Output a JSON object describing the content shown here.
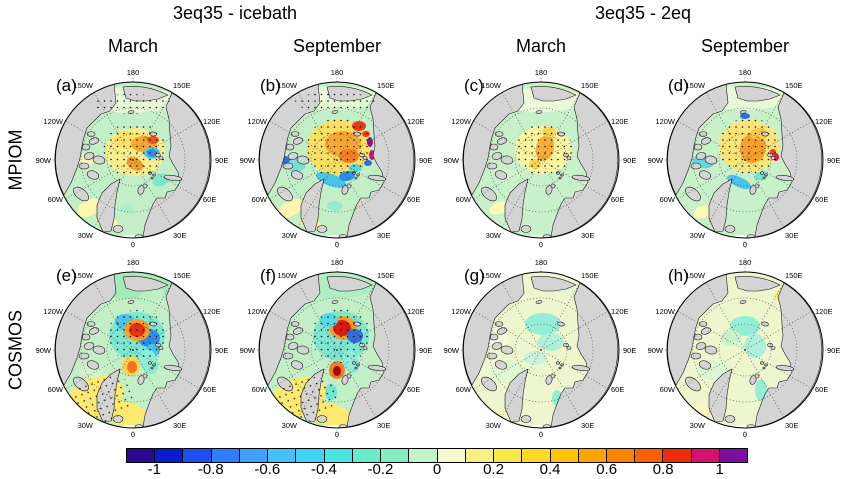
{
  "figure": {
    "group_titles": [
      "3eq35 - icebath",
      "3eq35 - 2eq"
    ],
    "col_titles": [
      "March",
      "September",
      "March",
      "September"
    ],
    "row_labels": [
      "MPIOM",
      "COSMOS"
    ],
    "lon_labels": [
      "180",
      "150W",
      "150E",
      "120W",
      "120E",
      "90W",
      "90E",
      "60W",
      "60E",
      "30W",
      "30E",
      "0"
    ]
  },
  "colorbar": {
    "tick_labels": [
      "-1",
      "-0.8",
      "-0.6",
      "-0.4",
      "-0.2",
      "0",
      "0.2",
      "0.4",
      "0.6",
      "0.8",
      "1"
    ],
    "colors": [
      "#2a0890",
      "#0a1ccf",
      "#1e50f0",
      "#2e7dfd",
      "#3ea2fd",
      "#45c0fb",
      "#3ed4f4",
      "#4ce4e0",
      "#66ecc8",
      "#84eec0",
      "#c2f4c6",
      "#f6f9cc",
      "#f8f082",
      "#fbe748",
      "#fdd826",
      "#fdc30a",
      "#fda400",
      "#fb8400",
      "#f86108",
      "#ee2a10",
      "#d6106e",
      "#7c0f9c"
    ]
  },
  "panels": [
    {
      "id": "a",
      "letter": "(a)",
      "row": "MPIOM",
      "group": "3eq35 - icebath",
      "month": "March",
      "base": "#c2efc6",
      "blobs": [
        [
          100,
          40,
          46,
          13,
          0,
          "#e8f9d8"
        ],
        [
          70,
          40,
          16,
          7,
          0,
          "#f8fdee"
        ],
        [
          146,
          50,
          12,
          6,
          20,
          "#f6fbda"
        ],
        [
          56,
          100,
          9,
          6,
          0,
          "#f8f3b8"
        ],
        [
          104,
          92,
          30,
          24,
          0,
          "#f9ee8e"
        ],
        [
          96,
          80,
          14,
          9,
          0,
          "#fbe468"
        ],
        [
          113,
          84,
          13,
          8,
          0,
          "#f6a832"
        ],
        [
          122,
          80,
          6,
          4,
          0,
          "#e85c1a"
        ],
        [
          104,
          104,
          9,
          6,
          30,
          "#f0a030"
        ],
        [
          121,
          93,
          8,
          6,
          0,
          "#55c8ec"
        ],
        [
          121,
          93,
          5,
          4,
          0,
          "#2e8ee8"
        ],
        [
          130,
          120,
          9,
          6,
          -20,
          "#7fe8c8"
        ],
        [
          58,
          148,
          13,
          8,
          -30,
          "#fdf6ae"
        ],
        [
          76,
          162,
          11,
          7,
          20,
          "#fdf6ae"
        ],
        [
          96,
          148,
          7,
          5,
          0,
          "#aef0c8"
        ],
        [
          140,
          140,
          8,
          5,
          -40,
          "#d8f6c8"
        ],
        [
          100,
          181,
          16,
          6,
          0,
          "#ffffff"
        ]
      ],
      "stipple": [
        [
          104,
          90,
          32,
          28,
          0
        ],
        [
          100,
          44,
          40,
          10,
          0
        ]
      ]
    },
    {
      "id": "b",
      "letter": "(b)",
      "row": "MPIOM",
      "group": "3eq35 - icebath",
      "month": "September",
      "base": "#c2efc6",
      "blobs": [
        [
          100,
          38,
          46,
          12,
          0,
          "#e0f8d4"
        ],
        [
          74,
          36,
          18,
          7,
          0,
          "#fdfde6"
        ],
        [
          104,
          88,
          32,
          28,
          0,
          "#fbdf62"
        ],
        [
          108,
          84,
          18,
          13,
          0,
          "#f8a832"
        ],
        [
          114,
          96,
          10,
          7,
          0,
          "#f27f20"
        ],
        [
          124,
          66,
          7,
          5,
          0,
          "#ee3a16"
        ],
        [
          131,
          74,
          4,
          3,
          0,
          "#ee3a16"
        ],
        [
          135,
          82,
          3,
          5,
          0,
          "#8c1498"
        ],
        [
          137,
          95,
          3,
          5,
          0,
          "#b81790"
        ],
        [
          133,
          103,
          4,
          3,
          0,
          "#2e6ee0"
        ],
        [
          96,
          120,
          16,
          6,
          20,
          "#49c4ea"
        ],
        [
          112,
          116,
          8,
          5,
          -10,
          "#2e8ee8"
        ],
        [
          120,
          108,
          6,
          4,
          0,
          "#55d8d8"
        ],
        [
          58,
          104,
          13,
          7,
          10,
          "#72e2d4"
        ],
        [
          50,
          100,
          5,
          4,
          0,
          "#2e6ee0"
        ],
        [
          56,
          148,
          13,
          8,
          -30,
          "#fdf6ae"
        ],
        [
          76,
          164,
          11,
          6,
          20,
          "#fdf6ae"
        ],
        [
          100,
          146,
          8,
          5,
          0,
          "#96ecca"
        ],
        [
          100,
          181,
          16,
          6,
          0,
          "#ffffff"
        ]
      ],
      "stipple": [
        [
          104,
          88,
          34,
          30,
          0
        ],
        [
          100,
          42,
          40,
          10,
          0
        ]
      ]
    },
    {
      "id": "c",
      "letter": "(c)",
      "row": "MPIOM",
      "group": "3eq35 - 2eq",
      "month": "March",
      "base": "#c8f1c9",
      "blobs": [
        [
          100,
          40,
          46,
          12,
          0,
          "#ecfadc"
        ],
        [
          104,
          90,
          28,
          24,
          0,
          "#fdf4a0"
        ],
        [
          106,
          88,
          9,
          13,
          15,
          "#f8ae36"
        ],
        [
          110,
          72,
          7,
          5,
          0,
          "#fbd44e"
        ],
        [
          96,
          104,
          6,
          5,
          0,
          "#fbd44e"
        ],
        [
          60,
          148,
          10,
          6,
          -20,
          "#fdf8b8"
        ],
        [
          140,
          134,
          8,
          5,
          -40,
          "#d8f6c8"
        ],
        [
          70,
          116,
          10,
          6,
          0,
          "#d2f4cc"
        ],
        [
          100,
          181,
          16,
          6,
          0,
          "#ffffff"
        ]
      ],
      "stipple": [
        [
          104,
          90,
          30,
          26,
          0
        ]
      ]
    },
    {
      "id": "d",
      "letter": "(d)",
      "row": "MPIOM",
      "group": "3eq35 - 2eq",
      "month": "September",
      "base": "#c8f1c9",
      "blobs": [
        [
          100,
          38,
          46,
          12,
          0,
          "#e8f9d8"
        ],
        [
          106,
          86,
          30,
          26,
          0,
          "#fbe578"
        ],
        [
          110,
          88,
          13,
          15,
          10,
          "#f89e2a"
        ],
        [
          116,
          74,
          9,
          6,
          0,
          "#fbc845"
        ],
        [
          102,
          56,
          5,
          3,
          0,
          "#2e6ee0"
        ],
        [
          133,
          97,
          3,
          4,
          0,
          "#e8174e"
        ],
        [
          130,
          92,
          3,
          3,
          0,
          "#ee3a16"
        ],
        [
          60,
          102,
          11,
          6,
          10,
          "#5fd8e2"
        ],
        [
          96,
          122,
          13,
          5,
          25,
          "#49c4ea"
        ],
        [
          118,
          116,
          7,
          4,
          -15,
          "#72e2d4"
        ],
        [
          60,
          152,
          10,
          6,
          -20,
          "#fdf8b8"
        ],
        [
          142,
          136,
          8,
          5,
          -40,
          "#d8f6c8"
        ],
        [
          100,
          181,
          16,
          6,
          0,
          "#ffffff"
        ]
      ],
      "stipple": [
        [
          106,
          86,
          32,
          28,
          0
        ]
      ]
    },
    {
      "id": "e",
      "letter": "(e)",
      "row": "COSMOS",
      "group": "3eq35 - icebath",
      "month": "March",
      "base": "#c2efc6",
      "blobs": [
        [
          98,
          36,
          48,
          13,
          0,
          "#a2ecba"
        ],
        [
          120,
          46,
          14,
          7,
          -20,
          "#baf0c4"
        ],
        [
          106,
          86,
          28,
          24,
          0,
          "#7de8d2"
        ],
        [
          94,
          72,
          10,
          8,
          0,
          "#49c4ea"
        ],
        [
          118,
          88,
          11,
          9,
          0,
          "#2e8ee8"
        ],
        [
          122,
          100,
          7,
          6,
          0,
          "#49c4ea"
        ],
        [
          106,
          80,
          13,
          11,
          0,
          "#f89e2a"
        ],
        [
          106,
          80,
          8,
          7,
          0,
          "#e83014"
        ],
        [
          100,
          116,
          9,
          10,
          0,
          "#fbd44e"
        ],
        [
          101,
          117,
          5,
          6,
          0,
          "#f2741e"
        ],
        [
          118,
          112,
          9,
          13,
          -20,
          "#8ceed6"
        ],
        [
          64,
          148,
          30,
          20,
          -25,
          "#fce96e"
        ],
        [
          92,
          163,
          24,
          12,
          10,
          "#fce96e"
        ],
        [
          60,
          120,
          12,
          8,
          0,
          "#d2f4cc"
        ],
        [
          100,
          181,
          16,
          6,
          0,
          "#ffffff"
        ]
      ],
      "stipple": [
        [
          106,
          86,
          30,
          26,
          0
        ],
        [
          70,
          150,
          34,
          22,
          -20
        ]
      ]
    },
    {
      "id": "f",
      "letter": "(f)",
      "row": "COSMOS",
      "group": "3eq35 - icebath",
      "month": "September",
      "base": "#c2efc6",
      "blobs": [
        [
          98,
          36,
          48,
          12,
          0,
          "#aeeec0"
        ],
        [
          106,
          86,
          28,
          25,
          0,
          "#7de8d2"
        ],
        [
          108,
          78,
          14,
          12,
          0,
          "#f89e2a"
        ],
        [
          107,
          78,
          9,
          8,
          0,
          "#d81c0e"
        ],
        [
          120,
          86,
          8,
          7,
          0,
          "#2e6ee0"
        ],
        [
          94,
          70,
          9,
          7,
          0,
          "#55d8ea"
        ],
        [
          102,
          120,
          8,
          9,
          0,
          "#f27f20"
        ],
        [
          102,
          121,
          4,
          5,
          0,
          "#a80016"
        ],
        [
          116,
          112,
          8,
          12,
          -20,
          "#8ceed6"
        ],
        [
          96,
          142,
          6,
          8,
          0,
          "#72e2d4"
        ],
        [
          62,
          148,
          30,
          19,
          -25,
          "#fce96e"
        ],
        [
          92,
          164,
          24,
          11,
          10,
          "#fce96e"
        ],
        [
          100,
          181,
          16,
          6,
          0,
          "#ffffff"
        ]
      ],
      "stipple": [
        [
          106,
          86,
          30,
          27,
          0
        ],
        [
          70,
          150,
          34,
          21,
          -20
        ]
      ]
    },
    {
      "id": "g",
      "letter": "(g)",
      "row": "COSMOS",
      "group": "3eq35 - 2eq",
      "month": "March",
      "base": "#eef6cd",
      "blobs": [
        [
          104,
          74,
          18,
          11,
          0,
          "#94eed6"
        ],
        [
          112,
          92,
          13,
          9,
          0,
          "#aef0da"
        ],
        [
          96,
          108,
          11,
          7,
          0,
          "#c6f4da"
        ],
        [
          148,
          44,
          14,
          8,
          -25,
          "#fbf07e"
        ],
        [
          126,
          38,
          10,
          6,
          0,
          "#e2f8d0"
        ],
        [
          70,
          122,
          18,
          11,
          0,
          "#def7d2"
        ],
        [
          118,
          148,
          5,
          8,
          0,
          "#94eed6"
        ],
        [
          60,
          90,
          10,
          6,
          0,
          "#f6fada"
        ],
        [
          70,
          164,
          12,
          6,
          0,
          "#f9f6c0"
        ],
        [
          100,
          181,
          16,
          6,
          0,
          "#ffffff"
        ]
      ],
      "stipple": []
    },
    {
      "id": "h",
      "letter": "(h)",
      "row": "COSMOS",
      "group": "3eq35 - 2eq",
      "month": "September",
      "base": "#eef6cd",
      "blobs": [
        [
          102,
          76,
          15,
          10,
          0,
          "#94eed6"
        ],
        [
          112,
          96,
          11,
          12,
          0,
          "#aef0da"
        ],
        [
          88,
          88,
          10,
          8,
          0,
          "#c8f2c8"
        ],
        [
          146,
          42,
          16,
          8,
          -25,
          "#fbf07e"
        ],
        [
          118,
          140,
          6,
          11,
          0,
          "#94eed6"
        ],
        [
          70,
          120,
          16,
          10,
          0,
          "#def7d2"
        ],
        [
          64,
          160,
          12,
          6,
          0,
          "#f9f6c0"
        ],
        [
          100,
          181,
          16,
          6,
          0,
          "#ffffff"
        ]
      ],
      "stipple": []
    }
  ],
  "chart_data": {
    "type": "heatmap",
    "subtype": "polar-stereographic map grid (Arctic, 180 at top, 0 at bottom)",
    "grid": {
      "rows": [
        "MPIOM",
        "COSMOS"
      ],
      "columns": [
        "3eq35 - icebath / March",
        "3eq35 - icebath / September",
        "3eq35 - 2eq / March",
        "3eq35 - 2eq / September"
      ]
    },
    "colorbar": {
      "min": -1,
      "max": 1,
      "n_segments": 22,
      "ticks": [
        -1,
        -0.8,
        -0.6,
        -0.4,
        -0.2,
        0,
        0.2,
        0.4,
        0.6,
        0.8,
        1
      ]
    },
    "graticule": {
      "meridian_step_deg": 30,
      "latitude_circles": [
        "80N",
        "70N"
      ],
      "outer_edge": "60N"
    },
    "panel_summaries": [
      {
        "label": "(a)",
        "model": "MPIOM",
        "month": "March",
        "diff": "3eq35 - icebath",
        "pattern": "moderate positive anomaly 0.2-0.5 over central Arctic, small negative (-0.4) spot near pole, weak elsewhere, stippled center"
      },
      {
        "label": "(b)",
        "model": "MPIOM",
        "month": "September",
        "diff": "3eq35 - icebath",
        "pattern": "strong positive anomaly 0.4-0.9 (locally >1) central Arctic, negative patches -0.3..-0.6 along Siberian shelf and Baffin Bay, stippled center"
      },
      {
        "label": "(c)",
        "model": "MPIOM",
        "month": "March",
        "diff": "3eq35 - 2eq",
        "pattern": "weak positive anomaly 0.1-0.5 central Arctic, near-zero elsewhere"
      },
      {
        "label": "(d)",
        "model": "MPIOM",
        "month": "September",
        "diff": "3eq35 - 2eq",
        "pattern": "moderate positive anomaly 0.2-0.6 central Arctic with small negative patches -0.2..-0.4"
      },
      {
        "label": "(e)",
        "model": "COSMOS",
        "month": "March",
        "diff": "3eq35 - icebath",
        "pattern": "dipole near pole: strong positive >0.8 spot inside negative -0.2..-0.5 region; positive 0.2-0.4 stippled North Atlantic"
      },
      {
        "label": "(f)",
        "model": "COSMOS",
        "month": "September",
        "diff": "3eq35 - icebath",
        "pattern": "strong positive >0.9 spot near pole within negative -0.2..-0.5 region, second positive spot near Fram Strait, positive stippled North Atlantic"
      },
      {
        "label": "(g)",
        "model": "COSMOS",
        "month": "March",
        "diff": "3eq35 - 2eq",
        "pattern": "weak anomalies -0.2..0.2 everywhere"
      },
      {
        "label": "(h)",
        "model": "COSMOS",
        "month": "September",
        "diff": "3eq35 - 2eq",
        "pattern": "weak anomalies -0.2..0.2 everywhere"
      }
    ]
  }
}
